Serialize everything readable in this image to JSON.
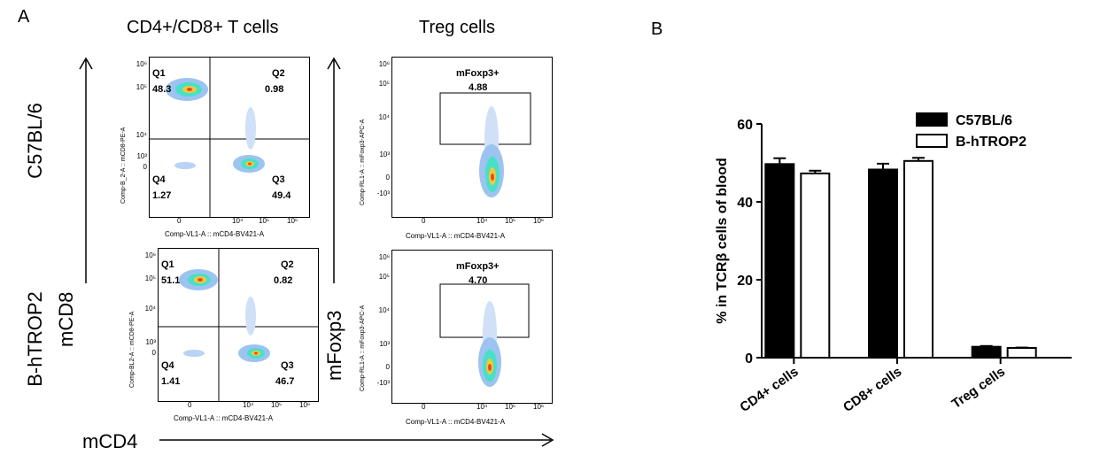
{
  "panel_a": {
    "letter": "A",
    "col1_title": "CD4+/CD8+ T cells",
    "col2_title": "Treg cells",
    "row1_label": "C57BL/6",
    "row2_label": "B-hTROP2",
    "y_arrow_label_1": "mCD8",
    "y_arrow_label_2": "mFoxp3",
    "x_arrow_label": "mCD4",
    "flow_plots": [
      {
        "ylabel": "Comp-B_2-A :: mCD8-PE-A",
        "xlabel": "Comp-VL1-A :: mCD4-BV421-A",
        "q1": "Q1",
        "q1v": "48.3",
        "q2": "Q2",
        "q2v": "0.98",
        "q3": "Q3",
        "q3v": "49.4",
        "q4": "Q4",
        "q4v": "1.27"
      },
      {
        "ylabel": "Comp-BL2-A :: mCD8-PE-A",
        "xlabel": "Comp-VL1-A :: mCD4-BV421-A",
        "q1": "Q1",
        "q1v": "51.1",
        "q2": "Q2",
        "q2v": "0.82",
        "q3": "Q3",
        "q3v": "46.7",
        "q4": "Q4",
        "q4v": "1.41"
      }
    ],
    "treg_plots": [
      {
        "ylabel": "Comp-RL1-A :: mFoxp3-APC-A",
        "xlabel": "Comp-VL1-A :: mCD4-BV421-A",
        "gate": "mFoxp3+",
        "gate_value": "4.88"
      },
      {
        "ylabel": "Comp-RL1-A :: mFoxp3-APC-A",
        "xlabel": "Comp-VL1-A :: mCD4-BV421-A",
        "gate": "mFoxp3+",
        "gate_value": "4.70"
      }
    ],
    "tick_labels": {
      "flow_y": [
        "10⁶",
        "10⁵",
        "10⁴",
        "10³",
        "0"
      ],
      "flow_x": [
        "0",
        "10⁴",
        "10⁵",
        "10⁶"
      ],
      "treg_y": [
        "10⁶",
        "10⁵",
        "10⁴",
        "10³",
        "0",
        "-10³"
      ],
      "treg_x": [
        "0",
        "10⁴",
        "10⁵",
        "10⁶"
      ]
    }
  },
  "chart_data": {
    "type": "bar",
    "panel_letter": "B",
    "categories": [
      "CD4+ cells",
      "CD8+ cells",
      "Treg cells"
    ],
    "series": [
      {
        "name": "C57BL/6",
        "values": [
          49.7,
          48.3,
          2.8
        ],
        "errors": [
          1.5,
          1.5,
          0.2
        ],
        "fill": "#000000"
      },
      {
        "name": "B-hTROP2",
        "values": [
          47.3,
          50.5,
          2.5
        ],
        "errors": [
          0.7,
          0.8,
          0.1
        ],
        "fill": "#ffffff"
      }
    ],
    "ylabel": "% in TCRβ cells of blood",
    "ylim": [
      0,
      60
    ],
    "yticks": [
      0,
      20,
      40,
      60
    ],
    "legend_position": "top-right",
    "grid": false
  }
}
